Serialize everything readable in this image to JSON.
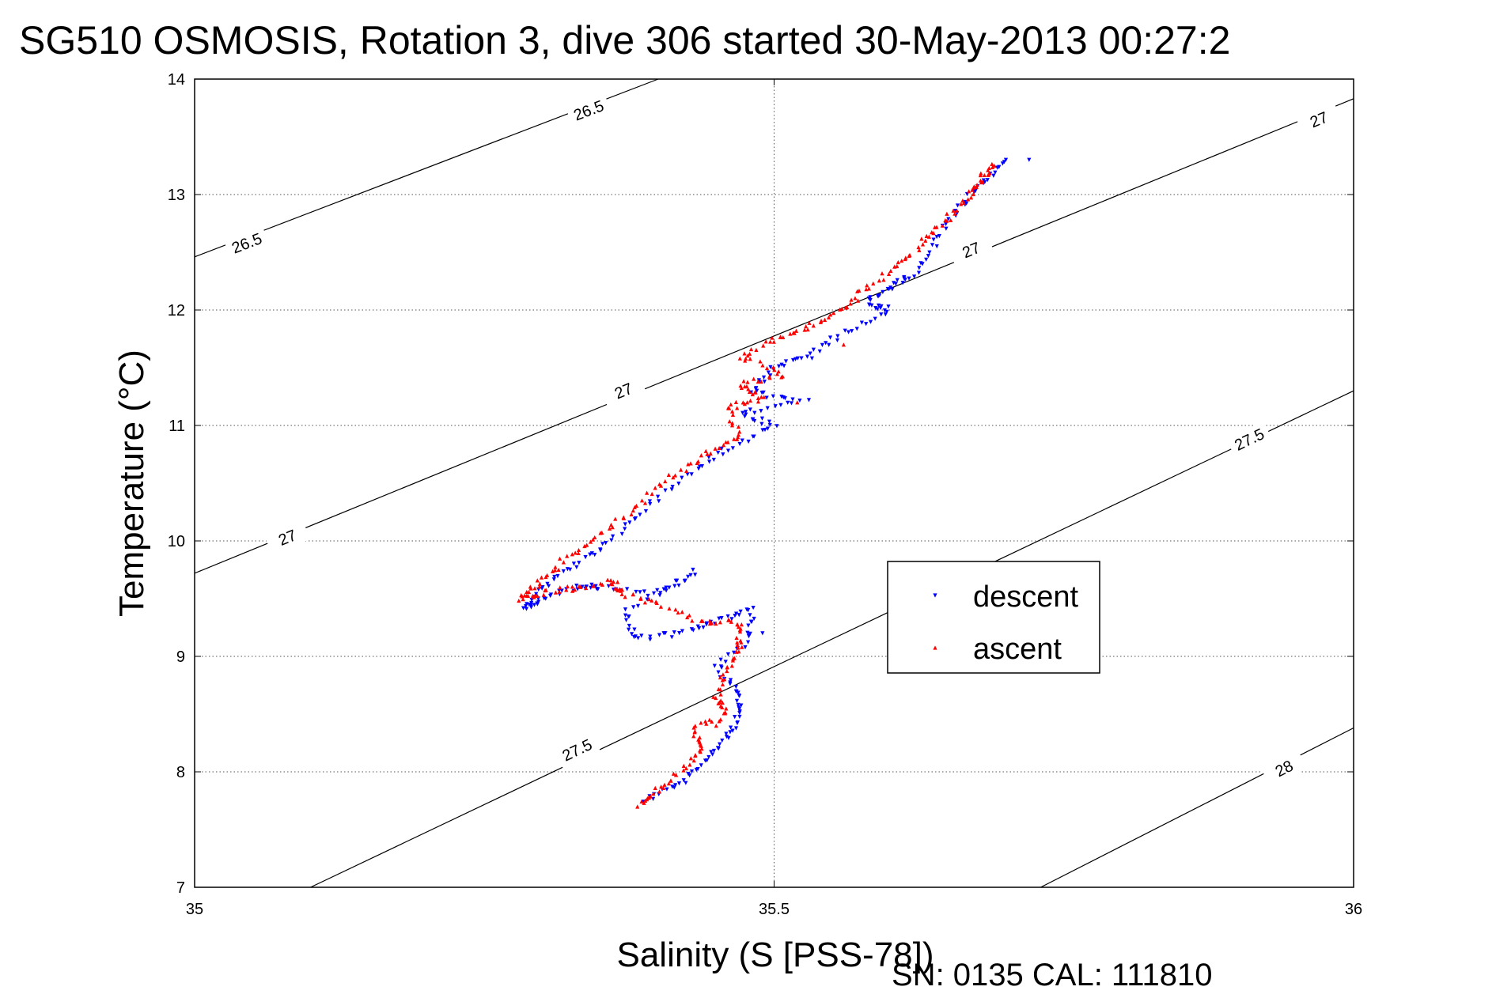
{
  "chart_data": {
    "type": "scatter",
    "title": "SG510 OSMOSIS, Rotation 3, dive 306 started 30-May-2013 00:27:2",
    "xlabel": "Salinity (S [PSS-78])",
    "ylabel": "Temperature (°C)",
    "xlim": [
      35,
      36
    ],
    "ylim": [
      7,
      14
    ],
    "x_ticks": [
      "35",
      "35.5",
      "36"
    ],
    "y_ticks": [
      "7",
      "8",
      "9",
      "10",
      "11",
      "12",
      "13",
      "14"
    ],
    "grid": true,
    "legend_position": "center-right",
    "footer": "SN: 0135  CAL: 111810",
    "density_contours": [
      {
        "label": "26.5",
        "points": [
          [
            35,
            12.46
          ],
          [
            35.4,
            14
          ]
        ]
      },
      {
        "label": "27",
        "points": [
          [
            35,
            9.72
          ],
          [
            36,
            13.83
          ]
        ]
      },
      {
        "label": "27.5",
        "points": [
          [
            35.1,
            7
          ],
          [
            36,
            11.3
          ]
        ]
      },
      {
        "label": "28",
        "points": [
          [
            35.73,
            7
          ],
          [
            36,
            8.38
          ]
        ]
      }
    ],
    "contour_labels": [
      {
        "text": "26.5",
        "x": 35.34,
        "y": 13.73
      },
      {
        "text": "26.5",
        "x": 35.045,
        "y": 12.58
      },
      {
        "text": "27",
        "x": 35.97,
        "y": 13.65
      },
      {
        "text": "27",
        "x": 35.67,
        "y": 12.52
      },
      {
        "text": "27",
        "x": 35.37,
        "y": 11.3
      },
      {
        "text": "27",
        "x": 35.08,
        "y": 10.03
      },
      {
        "text": "27.5",
        "x": 35.91,
        "y": 10.88
      },
      {
        "text": "27.5",
        "x": 35.33,
        "y": 8.19
      },
      {
        "text": "28",
        "x": 35.94,
        "y": 8.03
      }
    ],
    "series": [
      {
        "name": "descent",
        "color": "#0000ff",
        "marker": "triangle-down",
        "path": [
          [
            35.39,
            7.75
          ],
          [
            35.42,
            7.9
          ],
          [
            35.44,
            8.1
          ],
          [
            35.46,
            8.3
          ],
          [
            35.47,
            8.5
          ],
          [
            35.47,
            8.7
          ],
          [
            35.45,
            8.9
          ],
          [
            35.48,
            9.15
          ],
          [
            35.48,
            9.4
          ],
          [
            35.45,
            9.3
          ],
          [
            35.42,
            9.2
          ],
          [
            35.38,
            9.15
          ],
          [
            35.37,
            9.4
          ],
          [
            35.43,
            9.7
          ],
          [
            35.4,
            9.55
          ],
          [
            35.35,
            9.6
          ],
          [
            35.33,
            9.6
          ],
          [
            35.3,
            9.5
          ],
          [
            35.285,
            9.42
          ],
          [
            35.3,
            9.6
          ],
          [
            35.33,
            9.8
          ],
          [
            35.36,
            10.0
          ],
          [
            35.39,
            10.3
          ],
          [
            35.43,
            10.6
          ],
          [
            35.46,
            10.8
          ],
          [
            35.5,
            11.0
          ],
          [
            35.47,
            11.1
          ],
          [
            35.52,
            11.2
          ],
          [
            35.48,
            11.3
          ],
          [
            35.5,
            11.5
          ],
          [
            35.53,
            11.6
          ],
          [
            35.56,
            11.8
          ],
          [
            35.6,
            12.0
          ],
          [
            35.58,
            12.05
          ],
          [
            35.6,
            12.2
          ],
          [
            35.62,
            12.3
          ],
          [
            35.64,
            12.6
          ],
          [
            35.66,
            12.9
          ],
          [
            35.68,
            13.1
          ],
          [
            35.7,
            13.3
          ]
        ],
        "extra_points": [
          [
            35.72,
            13.3
          ],
          [
            35.53,
            11.22
          ],
          [
            35.49,
            9.2
          ],
          [
            35.43,
            9.75
          ]
        ]
      },
      {
        "name": "ascent",
        "color": "#ff0000",
        "marker": "triangle-up",
        "path": [
          [
            35.385,
            7.72
          ],
          [
            35.4,
            7.85
          ],
          [
            35.42,
            8.0
          ],
          [
            35.44,
            8.2
          ],
          [
            35.43,
            8.38
          ],
          [
            35.46,
            8.5
          ],
          [
            35.45,
            8.65
          ],
          [
            35.46,
            8.9
          ],
          [
            35.47,
            9.1
          ],
          [
            35.47,
            9.3
          ],
          [
            35.44,
            9.3
          ],
          [
            35.4,
            9.45
          ],
          [
            35.37,
            9.55
          ],
          [
            35.36,
            9.65
          ],
          [
            35.33,
            9.6
          ],
          [
            35.3,
            9.55
          ],
          [
            35.28,
            9.5
          ],
          [
            35.3,
            9.65
          ],
          [
            35.32,
            9.85
          ],
          [
            35.35,
            10.05
          ],
          [
            35.38,
            10.3
          ],
          [
            35.41,
            10.55
          ],
          [
            35.44,
            10.75
          ],
          [
            35.47,
            10.9
          ],
          [
            35.46,
            11.15
          ],
          [
            35.49,
            11.25
          ],
          [
            35.47,
            11.35
          ],
          [
            35.51,
            11.45
          ],
          [
            35.47,
            11.6
          ],
          [
            35.5,
            11.75
          ],
          [
            35.53,
            11.85
          ],
          [
            35.56,
            12.0
          ],
          [
            35.58,
            12.2
          ],
          [
            35.61,
            12.4
          ],
          [
            35.63,
            12.6
          ],
          [
            35.65,
            12.8
          ],
          [
            35.67,
            13.0
          ],
          [
            35.68,
            13.15
          ],
          [
            35.69,
            13.25
          ]
        ],
        "extra_points": [
          [
            35.56,
            11.7
          ],
          [
            35.52,
            11.2
          ],
          [
            35.45,
            8.4
          ]
        ]
      }
    ]
  }
}
